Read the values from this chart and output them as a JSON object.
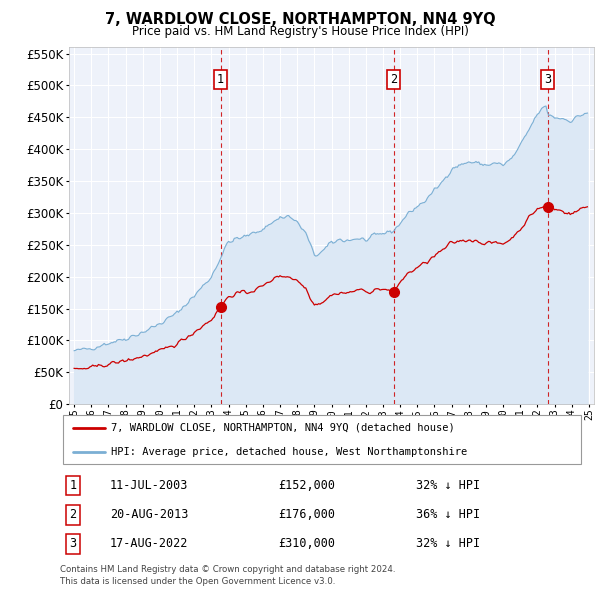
{
  "title": "7, WARDLOW CLOSE, NORTHAMPTON, NN4 9YQ",
  "subtitle": "Price paid vs. HM Land Registry's House Price Index (HPI)",
  "legend_line1": "7, WARDLOW CLOSE, NORTHAMPTON, NN4 9YQ (detached house)",
  "legend_line2": "HPI: Average price, detached house, West Northamptonshire",
  "footer1": "Contains HM Land Registry data © Crown copyright and database right 2024.",
  "footer2": "This data is licensed under the Open Government Licence v3.0.",
  "table": [
    {
      "num": "1",
      "date": "11-JUL-2003",
      "price": "£152,000",
      "hpi": "32% ↓ HPI"
    },
    {
      "num": "2",
      "date": "20-AUG-2013",
      "price": "£176,000",
      "hpi": "36% ↓ HPI"
    },
    {
      "num": "3",
      "date": "17-AUG-2022",
      "price": "£310,000",
      "hpi": "32% ↓ HPI"
    }
  ],
  "hpi_line_color": "#7bafd4",
  "hpi_fill_color": "#dce8f5",
  "sales_line_color": "#cc0000",
  "vline_color": "#cc0000",
  "plot_bg_color": "#eef2fa",
  "ylim": [
    0,
    560000
  ],
  "yticks": [
    0,
    50000,
    100000,
    150000,
    200000,
    250000,
    300000,
    350000,
    400000,
    450000,
    500000,
    550000
  ],
  "sale_years_f": [
    2003.533,
    2013.617,
    2022.617
  ],
  "sale_prices": [
    152000,
    176000,
    310000
  ],
  "sale_labels": [
    "1",
    "2",
    "3"
  ]
}
